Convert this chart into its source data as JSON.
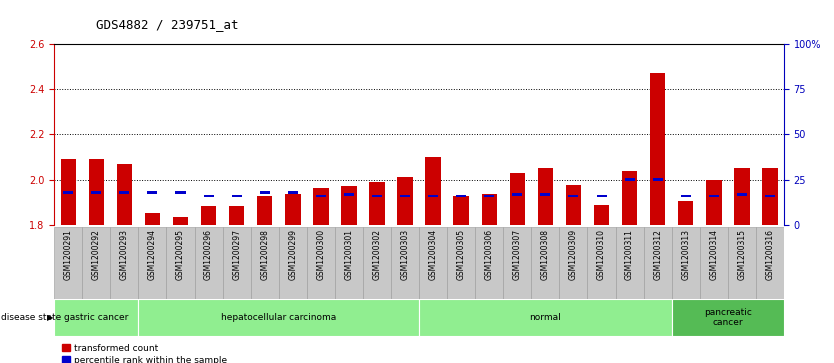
{
  "title": "GDS4882 / 239751_at",
  "samples": [
    "GSM1200291",
    "GSM1200292",
    "GSM1200293",
    "GSM1200294",
    "GSM1200295",
    "GSM1200296",
    "GSM1200297",
    "GSM1200298",
    "GSM1200299",
    "GSM1200300",
    "GSM1200301",
    "GSM1200302",
    "GSM1200303",
    "GSM1200304",
    "GSM1200305",
    "GSM1200306",
    "GSM1200307",
    "GSM1200308",
    "GSM1200309",
    "GSM1200310",
    "GSM1200311",
    "GSM1200312",
    "GSM1200313",
    "GSM1200314",
    "GSM1200315",
    "GSM1200316"
  ],
  "transformed_count": [
    2.09,
    2.09,
    2.07,
    1.855,
    1.835,
    1.885,
    1.885,
    1.93,
    1.935,
    1.965,
    1.97,
    1.99,
    2.01,
    2.1,
    1.93,
    1.935,
    2.03,
    2.05,
    1.975,
    1.89,
    2.04,
    2.47,
    1.905,
    2.0,
    2.05,
    2.05
  ],
  "percentile_rank": [
    18,
    18,
    18,
    18,
    18,
    16,
    16,
    18,
    18,
    16,
    17,
    16,
    16,
    16,
    16,
    16,
    17,
    17,
    16,
    16,
    25,
    25,
    16,
    16,
    17,
    16
  ],
  "ylim_left": [
    1.8,
    2.6
  ],
  "ylim_right": [
    0,
    100
  ],
  "yticks_left": [
    1.8,
    2.0,
    2.2,
    2.4,
    2.6
  ],
  "yticks_right": [
    0,
    25,
    50,
    75,
    100
  ],
  "ytick_labels_right": [
    "0",
    "25",
    "50",
    "75",
    "100%"
  ],
  "disease_groups": [
    {
      "label": "gastric cancer",
      "start": 0,
      "end": 2,
      "color": "#90EE90"
    },
    {
      "label": "hepatocellular carcinoma",
      "start": 3,
      "end": 12,
      "color": "#90EE90"
    },
    {
      "label": "normal",
      "start": 13,
      "end": 21,
      "color": "#90EE90"
    },
    {
      "label": "pancreatic\ncancer",
      "start": 22,
      "end": 25,
      "color": "#55BB55"
    }
  ],
  "bar_color_red": "#CC0000",
  "bar_color_blue": "#0000CC",
  "bar_width": 0.55,
  "baseline": 1.8,
  "left_tick_color": "#CC0000",
  "right_tick_color": "#0000BB",
  "title_fontsize": 9,
  "tick_fontsize": 7,
  "label_fontsize": 7
}
